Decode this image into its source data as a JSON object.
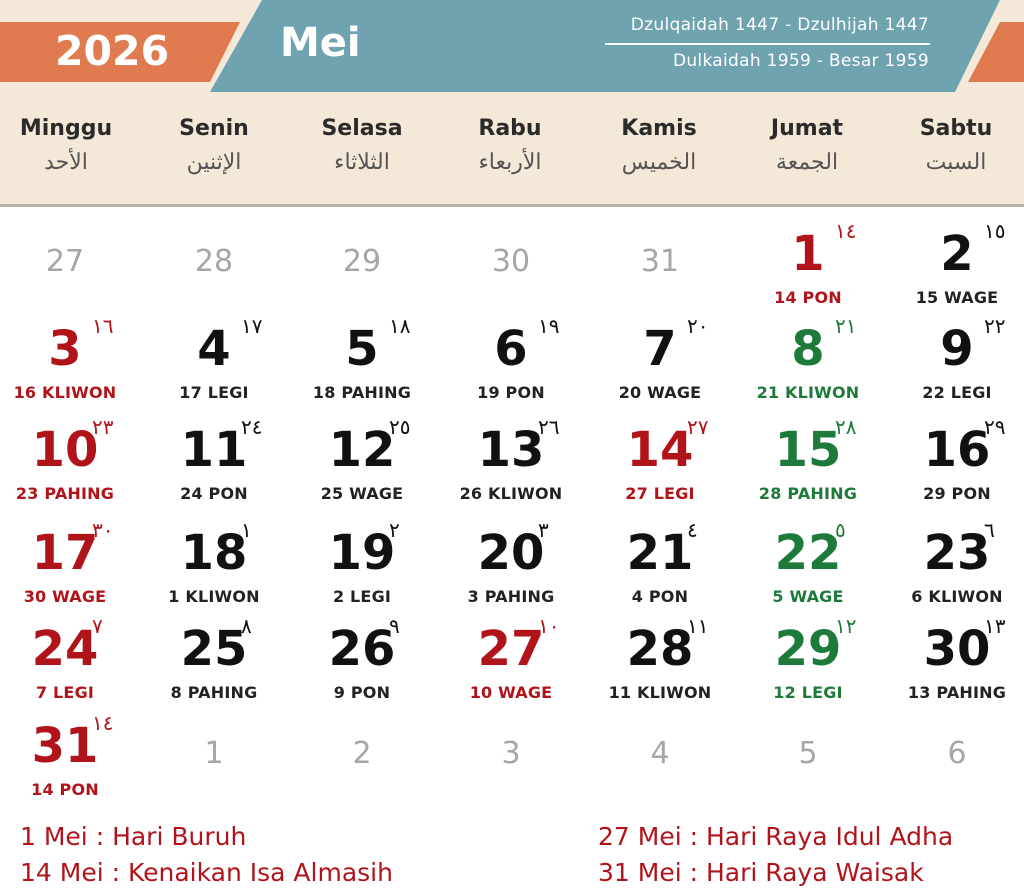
{
  "header": {
    "year": "2026",
    "month": "Mei",
    "hijri": "Dzulqaidah 1447 - Dzulhijah 1447",
    "javanese": "Dulkaidah 1959 - Besar 1959",
    "colors": {
      "orange": "#e07a4f",
      "teal": "#6fa3b0",
      "cream": "#f4e8d9",
      "holiday_red": "#b0141a",
      "friday_green": "#1e7a3a"
    }
  },
  "weekdays": [
    {
      "name": "Minggu",
      "arabic": "الأحد"
    },
    {
      "name": "Senin",
      "arabic": "الإثنين"
    },
    {
      "name": "Selasa",
      "arabic": "الثلاثاء"
    },
    {
      "name": "Rabu",
      "arabic": "الأربعاء"
    },
    {
      "name": "Kamis",
      "arabic": "الخميس"
    },
    {
      "name": "Jumat",
      "arabic": "الجمعة"
    },
    {
      "name": "Sabtu",
      "arabic": "السبت"
    }
  ],
  "weeks": [
    [
      {
        "day": "27",
        "other": true
      },
      {
        "day": "28",
        "other": true
      },
      {
        "day": "29",
        "other": true
      },
      {
        "day": "30",
        "other": true
      },
      {
        "day": "31",
        "other": true
      },
      {
        "day": "1",
        "hijri": "١٤",
        "pasaran": "14 PON",
        "style": "red"
      },
      {
        "day": "2",
        "hijri": "١٥",
        "pasaran": "15 WAGE",
        "style": ""
      }
    ],
    [
      {
        "day": "3",
        "hijri": "١٦",
        "pasaran": "16 KLIWON",
        "style": "red"
      },
      {
        "day": "4",
        "hijri": "١٧",
        "pasaran": "17 LEGI",
        "style": ""
      },
      {
        "day": "5",
        "hijri": "١٨",
        "pasaran": "18 PAHING",
        "style": ""
      },
      {
        "day": "6",
        "hijri": "١٩",
        "pasaran": "19 PON",
        "style": ""
      },
      {
        "day": "7",
        "hijri": "٢٠",
        "pasaran": "20 WAGE",
        "style": ""
      },
      {
        "day": "8",
        "hijri": "٢١",
        "pasaran": "21 KLIWON",
        "style": "green"
      },
      {
        "day": "9",
        "hijri": "٢٢",
        "pasaran": "22 LEGI",
        "style": ""
      }
    ],
    [
      {
        "day": "10",
        "hijri": "٢٣",
        "pasaran": "23 PAHING",
        "style": "red"
      },
      {
        "day": "11",
        "hijri": "٢٤",
        "pasaran": "24 PON",
        "style": ""
      },
      {
        "day": "12",
        "hijri": "٢٥",
        "pasaran": "25 WAGE",
        "style": ""
      },
      {
        "day": "13",
        "hijri": "٢٦",
        "pasaran": "26 KLIWON",
        "style": ""
      },
      {
        "day": "14",
        "hijri": "٢٧",
        "pasaran": "27 LEGI",
        "style": "red"
      },
      {
        "day": "15",
        "hijri": "٢٨",
        "pasaran": "28 PAHING",
        "style": "green"
      },
      {
        "day": "16",
        "hijri": "٢٩",
        "pasaran": "29 PON",
        "style": ""
      }
    ],
    [
      {
        "day": "17",
        "hijri": "٣٠",
        "pasaran": "30 WAGE",
        "style": "red"
      },
      {
        "day": "18",
        "hijri": "١",
        "pasaran": "1 KLIWON",
        "style": ""
      },
      {
        "day": "19",
        "hijri": "٢",
        "pasaran": "2 LEGI",
        "style": ""
      },
      {
        "day": "20",
        "hijri": "٣",
        "pasaran": "3 PAHING",
        "style": ""
      },
      {
        "day": "21",
        "hijri": "٤",
        "pasaran": "4 PON",
        "style": ""
      },
      {
        "day": "22",
        "hijri": "٥",
        "pasaran": "5 WAGE",
        "style": "green"
      },
      {
        "day": "23",
        "hijri": "٦",
        "pasaran": "6 KLIWON",
        "style": ""
      }
    ],
    [
      {
        "day": "24",
        "hijri": "٧",
        "pasaran": "7 LEGI",
        "style": "red"
      },
      {
        "day": "25",
        "hijri": "٨",
        "pasaran": "8 PAHING",
        "style": ""
      },
      {
        "day": "26",
        "hijri": "٩",
        "pasaran": "9 PON",
        "style": ""
      },
      {
        "day": "27",
        "hijri": "١٠",
        "pasaran": "10 WAGE",
        "style": "red"
      },
      {
        "day": "28",
        "hijri": "١١",
        "pasaran": "11 KLIWON",
        "style": ""
      },
      {
        "day": "29",
        "hijri": "١٢",
        "pasaran": "12 LEGI",
        "style": "green"
      },
      {
        "day": "30",
        "hijri": "١٣",
        "pasaran": "13 PAHING",
        "style": ""
      }
    ],
    [
      {
        "day": "31",
        "hijri": "١٤",
        "pasaran": "14 PON",
        "style": "red"
      },
      {
        "day": "1",
        "other": true
      },
      {
        "day": "2",
        "other": true
      },
      {
        "day": "3",
        "other": true
      },
      {
        "day": "4",
        "other": true
      },
      {
        "day": "5",
        "other": true
      },
      {
        "day": "6",
        "other": true
      }
    ]
  ],
  "holidays": {
    "left": [
      "1 Mei : Hari Buruh",
      "14 Mei : Kenaikan Isa Almasih"
    ],
    "right": [
      "27 Mei : Hari Raya Idul Adha",
      "31 Mei : Hari Raya Waisak"
    ]
  }
}
